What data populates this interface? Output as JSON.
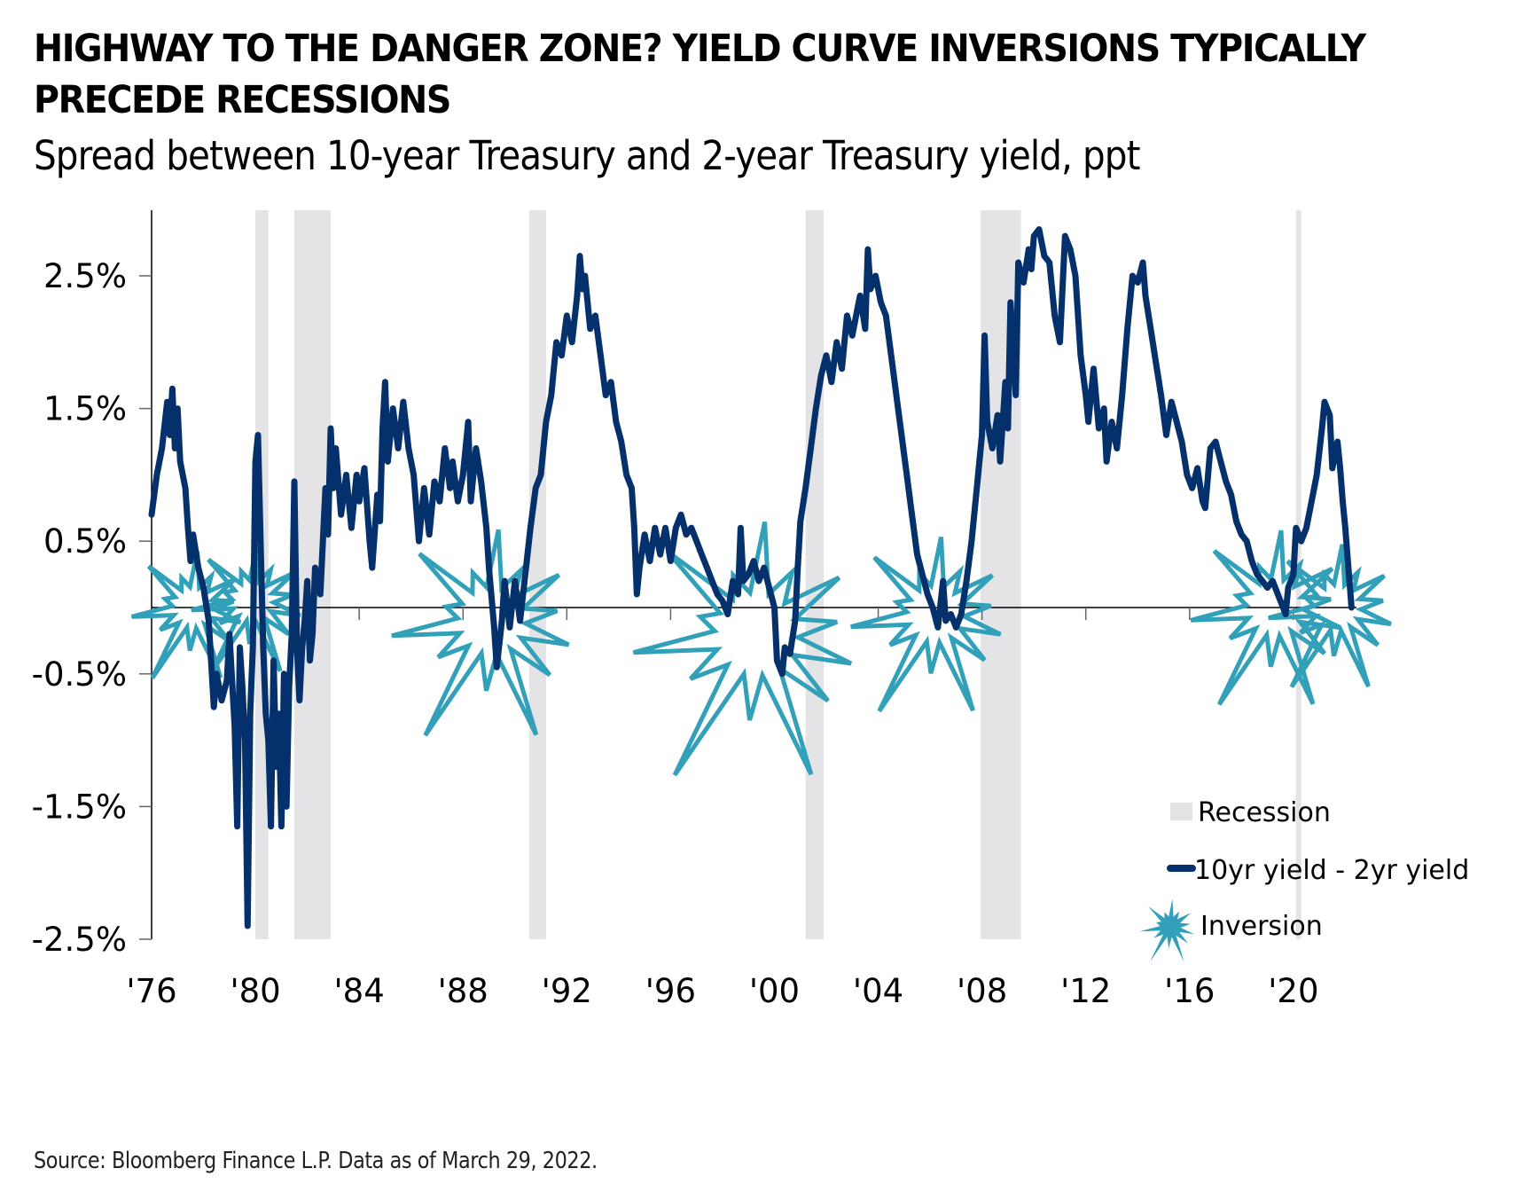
{
  "header": {
    "title": "HIGHWAY TO THE DANGER ZONE? YIELD CURVE INVERSIONS TYPICALLY PRECEDE RECESSIONS",
    "subtitle": "Spread between 10-year Treasury and 2-year Treasury yield, ppt"
  },
  "footer": {
    "source": "Source: Bloomberg Finance L.P. Data as of March 29, 2022."
  },
  "colors": {
    "line": "#04306b",
    "recession": "#e4e3e5",
    "inversion": "#31a0b8",
    "axis": "#000000"
  },
  "chart_data": {
    "type": "line",
    "title": "Spread between 10-year Treasury and 2-year Treasury yield, ppt",
    "xlabel": "",
    "ylabel": "",
    "xlim": [
      1976,
      2022.3
    ],
    "ylim": [
      -2.5,
      2.9
    ],
    "grid": false,
    "x_ticks": [
      1976,
      1980,
      1984,
      1988,
      1992,
      1996,
      2000,
      2004,
      2008,
      2012,
      2016,
      2020
    ],
    "x_tick_labels": [
      "'76",
      "'80",
      "'84",
      "'88",
      "'92",
      "'96",
      "'00",
      "'04",
      "'08",
      "'12",
      "'16",
      "'20"
    ],
    "y_ticks": [
      2.5,
      1.5,
      0.5,
      -0.5,
      -1.5,
      -2.5
    ],
    "y_tick_labels": [
      "2.5%",
      "1.5%",
      "0.5%",
      "-0.5%",
      "-1.5%",
      "-2.5%"
    ],
    "legend_position": "bottom-right",
    "legend": [
      {
        "label": "Recession",
        "kind": "recession"
      },
      {
        "label": "10yr yield - 2yr yield",
        "kind": "line"
      },
      {
        "label": "Inversion",
        "kind": "inversion"
      }
    ],
    "recessions": [
      {
        "start": 1980.0,
        "end": 1980.5
      },
      {
        "start": 1981.5,
        "end": 1982.9
      },
      {
        "start": 1990.55,
        "end": 1991.2
      },
      {
        "start": 2001.2,
        "end": 2001.9
      },
      {
        "start": 2007.95,
        "end": 2009.5
      },
      {
        "start": 2020.1,
        "end": 2020.3
      }
    ],
    "inversions": [
      {
        "x": 1977.6,
        "y": 0.0,
        "scale": 0.8
      },
      {
        "x": 1979.9,
        "y": 0.05,
        "scale": 0.8
      },
      {
        "x": 1989.1,
        "y": -0.1,
        "scale": 1.3
      },
      {
        "x": 1999.3,
        "y": -0.2,
        "scale": 1.6
      },
      {
        "x": 2006.2,
        "y": -0.05,
        "scale": 1.1
      },
      {
        "x": 2019.3,
        "y": 0.0,
        "scale": 1.1
      },
      {
        "x": 2021.7,
        "y": 0.0,
        "scale": 0.9
      }
    ],
    "series": [
      {
        "name": "10yr yield - 2yr yield",
        "points": [
          [
            1976.0,
            0.7
          ],
          [
            1976.2,
            1.0
          ],
          [
            1976.4,
            1.2
          ],
          [
            1976.6,
            1.55
          ],
          [
            1976.7,
            1.3
          ],
          [
            1976.8,
            1.65
          ],
          [
            1976.9,
            1.2
          ],
          [
            1977.0,
            1.5
          ],
          [
            1977.1,
            1.1
          ],
          [
            1977.3,
            0.9
          ],
          [
            1977.4,
            0.6
          ],
          [
            1977.5,
            0.35
          ],
          [
            1977.6,
            0.55
          ],
          [
            1977.8,
            0.3
          ],
          [
            1978.0,
            0.15
          ],
          [
            1978.2,
            -0.1
          ],
          [
            1978.4,
            -0.75
          ],
          [
            1978.5,
            -0.5
          ],
          [
            1978.7,
            -0.7
          ],
          [
            1978.9,
            -0.55
          ],
          [
            1979.0,
            -0.2
          ],
          [
            1979.2,
            -0.9
          ],
          [
            1979.3,
            -1.65
          ],
          [
            1979.4,
            -0.3
          ],
          [
            1979.5,
            -0.6
          ],
          [
            1979.6,
            -1.0
          ],
          [
            1979.7,
            -2.4
          ],
          [
            1979.8,
            -0.8
          ],
          [
            1979.9,
            -0.3
          ],
          [
            1980.0,
            1.1
          ],
          [
            1980.1,
            1.3
          ],
          [
            1980.2,
            0.5
          ],
          [
            1980.3,
            -0.3
          ],
          [
            1980.4,
            -0.8
          ],
          [
            1980.5,
            -1.0
          ],
          [
            1980.6,
            -1.65
          ],
          [
            1980.7,
            -0.4
          ],
          [
            1980.8,
            -1.2
          ],
          [
            1980.9,
            -0.8
          ],
          [
            1981.0,
            -1.65
          ],
          [
            1981.1,
            -0.5
          ],
          [
            1981.2,
            -1.5
          ],
          [
            1981.3,
            -0.6
          ],
          [
            1981.4,
            -0.2
          ],
          [
            1981.5,
            0.95
          ],
          [
            1981.6,
            -0.3
          ],
          [
            1981.7,
            -0.7
          ],
          [
            1981.8,
            -0.3
          ],
          [
            1981.9,
            -0.1
          ],
          [
            1982.0,
            0.2
          ],
          [
            1982.1,
            -0.4
          ],
          [
            1982.2,
            -0.2
          ],
          [
            1982.3,
            0.3
          ],
          [
            1982.5,
            0.1
          ],
          [
            1982.6,
            0.5
          ],
          [
            1982.7,
            0.9
          ],
          [
            1982.8,
            0.55
          ],
          [
            1982.9,
            1.35
          ],
          [
            1983.0,
            0.9
          ],
          [
            1983.1,
            1.2
          ],
          [
            1983.3,
            0.7
          ],
          [
            1983.5,
            1.0
          ],
          [
            1983.7,
            0.6
          ],
          [
            1983.9,
            1.0
          ],
          [
            1984.0,
            0.8
          ],
          [
            1984.2,
            1.05
          ],
          [
            1984.4,
            0.5
          ],
          [
            1984.5,
            0.3
          ],
          [
            1984.7,
            0.85
          ],
          [
            1984.8,
            0.65
          ],
          [
            1984.9,
            1.35
          ],
          [
            1985.0,
            1.7
          ],
          [
            1985.1,
            1.1
          ],
          [
            1985.3,
            1.5
          ],
          [
            1985.5,
            1.2
          ],
          [
            1985.7,
            1.55
          ],
          [
            1985.9,
            1.2
          ],
          [
            1986.1,
            1.0
          ],
          [
            1986.3,
            0.5
          ],
          [
            1986.5,
            0.9
          ],
          [
            1986.7,
            0.55
          ],
          [
            1986.9,
            0.95
          ],
          [
            1987.1,
            0.8
          ],
          [
            1987.3,
            1.2
          ],
          [
            1987.5,
            0.9
          ],
          [
            1987.6,
            1.1
          ],
          [
            1987.8,
            0.8
          ],
          [
            1988.0,
            1.0
          ],
          [
            1988.2,
            1.4
          ],
          [
            1988.3,
            0.8
          ],
          [
            1988.5,
            1.2
          ],
          [
            1988.7,
            0.95
          ],
          [
            1988.9,
            0.6
          ],
          [
            1989.0,
            0.3
          ],
          [
            1989.2,
            -0.15
          ],
          [
            1989.3,
            -0.45
          ],
          [
            1989.5,
            -0.1
          ],
          [
            1989.6,
            0.2
          ],
          [
            1989.8,
            -0.15
          ],
          [
            1990.0,
            0.2
          ],
          [
            1990.2,
            -0.1
          ],
          [
            1990.4,
            0.25
          ],
          [
            1990.6,
            0.6
          ],
          [
            1990.8,
            0.9
          ],
          [
            1991.0,
            1.0
          ],
          [
            1991.2,
            1.4
          ],
          [
            1991.4,
            1.6
          ],
          [
            1991.6,
            2.0
          ],
          [
            1991.8,
            1.9
          ],
          [
            1992.0,
            2.2
          ],
          [
            1992.2,
            2.0
          ],
          [
            1992.4,
            2.35
          ],
          [
            1992.5,
            2.65
          ],
          [
            1992.6,
            2.4
          ],
          [
            1992.7,
            2.5
          ],
          [
            1992.9,
            2.1
          ],
          [
            1993.1,
            2.2
          ],
          [
            1993.3,
            1.9
          ],
          [
            1993.5,
            1.6
          ],
          [
            1993.7,
            1.7
          ],
          [
            1993.9,
            1.4
          ],
          [
            1994.1,
            1.25
          ],
          [
            1994.3,
            1.0
          ],
          [
            1994.5,
            0.9
          ],
          [
            1994.6,
            0.6
          ],
          [
            1994.7,
            0.1
          ],
          [
            1994.8,
            0.3
          ],
          [
            1995.0,
            0.55
          ],
          [
            1995.2,
            0.35
          ],
          [
            1995.4,
            0.6
          ],
          [
            1995.6,
            0.4
          ],
          [
            1995.8,
            0.6
          ],
          [
            1996.0,
            0.35
          ],
          [
            1996.2,
            0.6
          ],
          [
            1996.4,
            0.7
          ],
          [
            1996.6,
            0.55
          ],
          [
            1996.8,
            0.6
          ],
          [
            1997.0,
            0.5
          ],
          [
            1997.2,
            0.4
          ],
          [
            1997.4,
            0.3
          ],
          [
            1997.6,
            0.2
          ],
          [
            1997.8,
            0.1
          ],
          [
            1998.0,
            0.05
          ],
          [
            1998.2,
            -0.05
          ],
          [
            1998.4,
            0.2
          ],
          [
            1998.6,
            0.1
          ],
          [
            1998.7,
            0.6
          ],
          [
            1998.8,
            0.2
          ],
          [
            1999.0,
            0.25
          ],
          [
            1999.2,
            0.35
          ],
          [
            1999.4,
            0.2
          ],
          [
            1999.6,
            0.3
          ],
          [
            1999.8,
            0.15
          ],
          [
            2000.0,
            0.0
          ],
          [
            2000.1,
            -0.4
          ],
          [
            2000.3,
            -0.5
          ],
          [
            2000.4,
            -0.3
          ],
          [
            2000.6,
            -0.35
          ],
          [
            2000.8,
            -0.1
          ],
          [
            2000.9,
            0.3
          ],
          [
            2001.0,
            0.65
          ],
          [
            2001.2,
            0.9
          ],
          [
            2001.4,
            1.2
          ],
          [
            2001.6,
            1.5
          ],
          [
            2001.8,
            1.75
          ],
          [
            2002.0,
            1.9
          ],
          [
            2002.2,
            1.7
          ],
          [
            2002.4,
            2.0
          ],
          [
            2002.6,
            1.8
          ],
          [
            2002.8,
            2.2
          ],
          [
            2003.0,
            2.05
          ],
          [
            2003.2,
            2.25
          ],
          [
            2003.3,
            2.35
          ],
          [
            2003.5,
            2.1
          ],
          [
            2003.6,
            2.7
          ],
          [
            2003.7,
            2.4
          ],
          [
            2003.9,
            2.5
          ],
          [
            2004.1,
            2.3
          ],
          [
            2004.3,
            2.2
          ],
          [
            2004.5,
            1.9
          ],
          [
            2004.7,
            1.6
          ],
          [
            2004.9,
            1.3
          ],
          [
            2005.1,
            1.0
          ],
          [
            2005.3,
            0.7
          ],
          [
            2005.5,
            0.4
          ],
          [
            2005.7,
            0.25
          ],
          [
            2005.9,
            0.1
          ],
          [
            2006.1,
            0.0
          ],
          [
            2006.3,
            -0.15
          ],
          [
            2006.5,
            0.2
          ],
          [
            2006.6,
            -0.1
          ],
          [
            2006.8,
            -0.05
          ],
          [
            2007.0,
            -0.15
          ],
          [
            2007.2,
            -0.05
          ],
          [
            2007.4,
            0.2
          ],
          [
            2007.6,
            0.5
          ],
          [
            2007.8,
            0.9
          ],
          [
            2008.0,
            1.3
          ],
          [
            2008.1,
            2.05
          ],
          [
            2008.2,
            1.4
          ],
          [
            2008.4,
            1.2
          ],
          [
            2008.6,
            1.45
          ],
          [
            2008.7,
            1.1
          ],
          [
            2008.9,
            1.7
          ],
          [
            2009.0,
            1.35
          ],
          [
            2009.1,
            2.3
          ],
          [
            2009.3,
            1.6
          ],
          [
            2009.4,
            2.6
          ],
          [
            2009.6,
            2.45
          ],
          [
            2009.8,
            2.7
          ],
          [
            2009.9,
            2.55
          ],
          [
            2010.0,
            2.8
          ],
          [
            2010.2,
            2.85
          ],
          [
            2010.4,
            2.65
          ],
          [
            2010.6,
            2.6
          ],
          [
            2010.8,
            2.2
          ],
          [
            2011.0,
            2.0
          ],
          [
            2011.1,
            2.4
          ],
          [
            2011.2,
            2.8
          ],
          [
            2011.4,
            2.7
          ],
          [
            2011.6,
            2.5
          ],
          [
            2011.8,
            1.9
          ],
          [
            2012.0,
            1.6
          ],
          [
            2012.1,
            1.4
          ],
          [
            2012.3,
            1.8
          ],
          [
            2012.5,
            1.35
          ],
          [
            2012.7,
            1.5
          ],
          [
            2012.8,
            1.1
          ],
          [
            2013.0,
            1.4
          ],
          [
            2013.2,
            1.2
          ],
          [
            2013.4,
            1.6
          ],
          [
            2013.6,
            2.1
          ],
          [
            2013.8,
            2.5
          ],
          [
            2014.0,
            2.45
          ],
          [
            2014.2,
            2.6
          ],
          [
            2014.3,
            2.35
          ],
          [
            2014.5,
            2.1
          ],
          [
            2014.7,
            1.85
          ],
          [
            2014.9,
            1.6
          ],
          [
            2015.1,
            1.3
          ],
          [
            2015.3,
            1.55
          ],
          [
            2015.5,
            1.4
          ],
          [
            2015.7,
            1.25
          ],
          [
            2015.9,
            1.0
          ],
          [
            2016.1,
            0.9
          ],
          [
            2016.3,
            1.05
          ],
          [
            2016.5,
            0.8
          ],
          [
            2016.6,
            0.75
          ],
          [
            2016.8,
            1.2
          ],
          [
            2017.0,
            1.25
          ],
          [
            2017.2,
            1.1
          ],
          [
            2017.4,
            0.95
          ],
          [
            2017.6,
            0.85
          ],
          [
            2017.8,
            0.65
          ],
          [
            2018.0,
            0.55
          ],
          [
            2018.2,
            0.5
          ],
          [
            2018.4,
            0.35
          ],
          [
            2018.6,
            0.25
          ],
          [
            2018.8,
            0.2
          ],
          [
            2019.0,
            0.15
          ],
          [
            2019.2,
            0.2
          ],
          [
            2019.4,
            0.1
          ],
          [
            2019.6,
            0.0
          ],
          [
            2019.7,
            -0.05
          ],
          [
            2019.8,
            0.15
          ],
          [
            2020.0,
            0.25
          ],
          [
            2020.1,
            0.6
          ],
          [
            2020.3,
            0.5
          ],
          [
            2020.5,
            0.6
          ],
          [
            2020.7,
            0.8
          ],
          [
            2020.9,
            1.0
          ],
          [
            2021.1,
            1.35
          ],
          [
            2021.2,
            1.55
          ],
          [
            2021.4,
            1.45
          ],
          [
            2021.5,
            1.05
          ],
          [
            2021.7,
            1.25
          ],
          [
            2021.8,
            1.05
          ],
          [
            2021.9,
            0.8
          ],
          [
            2022.0,
            0.6
          ],
          [
            2022.1,
            0.35
          ],
          [
            2022.2,
            0.1
          ],
          [
            2022.24,
            0.0
          ]
        ]
      }
    ]
  }
}
